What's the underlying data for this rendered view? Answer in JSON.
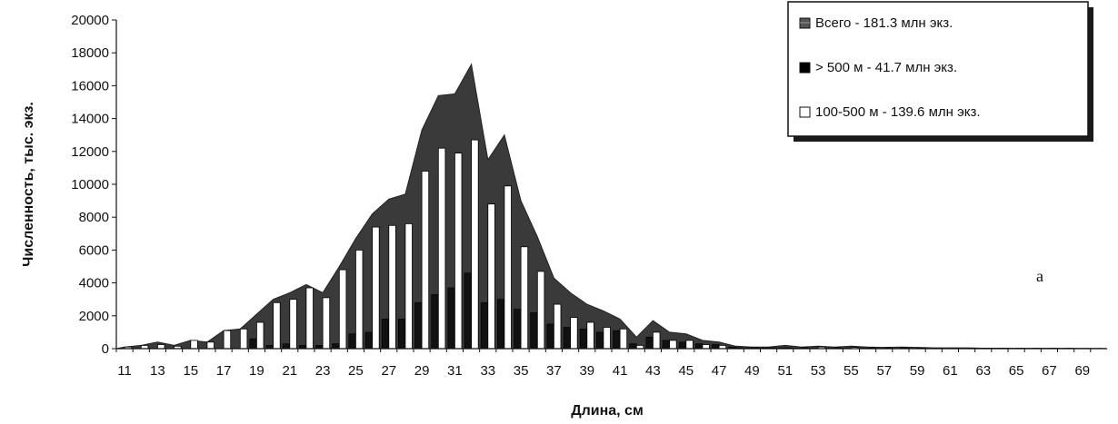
{
  "chart_data": {
    "type": "area+bar",
    "xlabel": "Длина, см",
    "ylabel": "Численность, тыс. экз.",
    "ylim": [
      0,
      20000
    ],
    "yticks": [
      0,
      2000,
      4000,
      6000,
      8000,
      10000,
      12000,
      14000,
      16000,
      18000,
      20000
    ],
    "x": [
      11,
      12,
      13,
      14,
      15,
      16,
      17,
      18,
      19,
      20,
      21,
      22,
      23,
      24,
      25,
      26,
      27,
      28,
      29,
      30,
      31,
      32,
      33,
      34,
      35,
      36,
      37,
      38,
      39,
      40,
      41,
      42,
      43,
      44,
      45,
      46,
      47,
      48,
      49,
      50,
      51,
      52,
      53,
      54,
      55,
      56,
      57,
      58,
      59,
      60,
      61,
      62,
      63,
      64,
      65,
      66,
      67,
      68,
      69,
      70
    ],
    "xtick_labels": [
      "11",
      "13",
      "15",
      "17",
      "19",
      "21",
      "23",
      "25",
      "27",
      "29",
      "31",
      "33",
      "35",
      "37",
      "39",
      "41",
      "43",
      "45",
      "47",
      "49",
      "51",
      "53",
      "55",
      "57",
      "59",
      "61",
      "63",
      "65",
      "67",
      "69"
    ],
    "legend_position": "top-right",
    "series": [
      {
        "name": "Всего - 181.3 млн экз.",
        "style": "area",
        "color": "#3a3a3a",
        "values": [
          100,
          200,
          400,
          200,
          500,
          400,
          1100,
          1200,
          2100,
          3000,
          3400,
          3900,
          3400,
          5000,
          6700,
          8200,
          9100,
          9400,
          13300,
          15400,
          15500,
          17300,
          11500,
          13000,
          9000,
          6800,
          4300,
          3400,
          2700,
          2300,
          1800,
          700,
          1700,
          1000,
          900,
          500,
          400,
          150,
          100,
          100,
          200,
          100,
          150,
          100,
          150,
          100,
          80,
          100,
          80,
          50,
          50,
          50,
          30,
          30,
          20,
          20,
          20,
          20,
          10,
          10
        ]
      },
      {
        "name": "> 500 м - 41.7 млн экз.",
        "style": "bar",
        "color": "#111111",
        "values": [
          0,
          0,
          0,
          0,
          0,
          0,
          0,
          0,
          600,
          200,
          300,
          200,
          200,
          300,
          900,
          1000,
          1800,
          1800,
          2800,
          3300,
          3700,
          4600,
          2800,
          3000,
          2400,
          2200,
          1500,
          1300,
          1200,
          1000,
          1100,
          300,
          700,
          500,
          400,
          300,
          250,
          100,
          50,
          50,
          50,
          30,
          30,
          20,
          20,
          20,
          10,
          10,
          10,
          0,
          0,
          0,
          0,
          0,
          0,
          0,
          0,
          0,
          0,
          0
        ]
      },
      {
        "name": "100-500 м - 139.6 млн экз.",
        "style": "bar",
        "color": "#ffffff",
        "values": [
          100,
          200,
          250,
          150,
          500,
          400,
          1100,
          1200,
          1600,
          2800,
          3000,
          3700,
          3100,
          4800,
          6000,
          7400,
          7500,
          7600,
          10800,
          12200,
          11900,
          12700,
          8800,
          9900,
          6200,
          4700,
          2700,
          1900,
          1600,
          1300,
          1200,
          200,
          1000,
          500,
          500,
          250,
          200,
          50,
          50,
          50,
          50,
          50,
          100,
          50,
          80,
          50,
          50,
          50,
          50,
          20,
          20,
          20,
          20,
          20,
          20,
          20,
          20,
          20,
          10,
          10
        ]
      }
    ],
    "annotation": "а"
  }
}
